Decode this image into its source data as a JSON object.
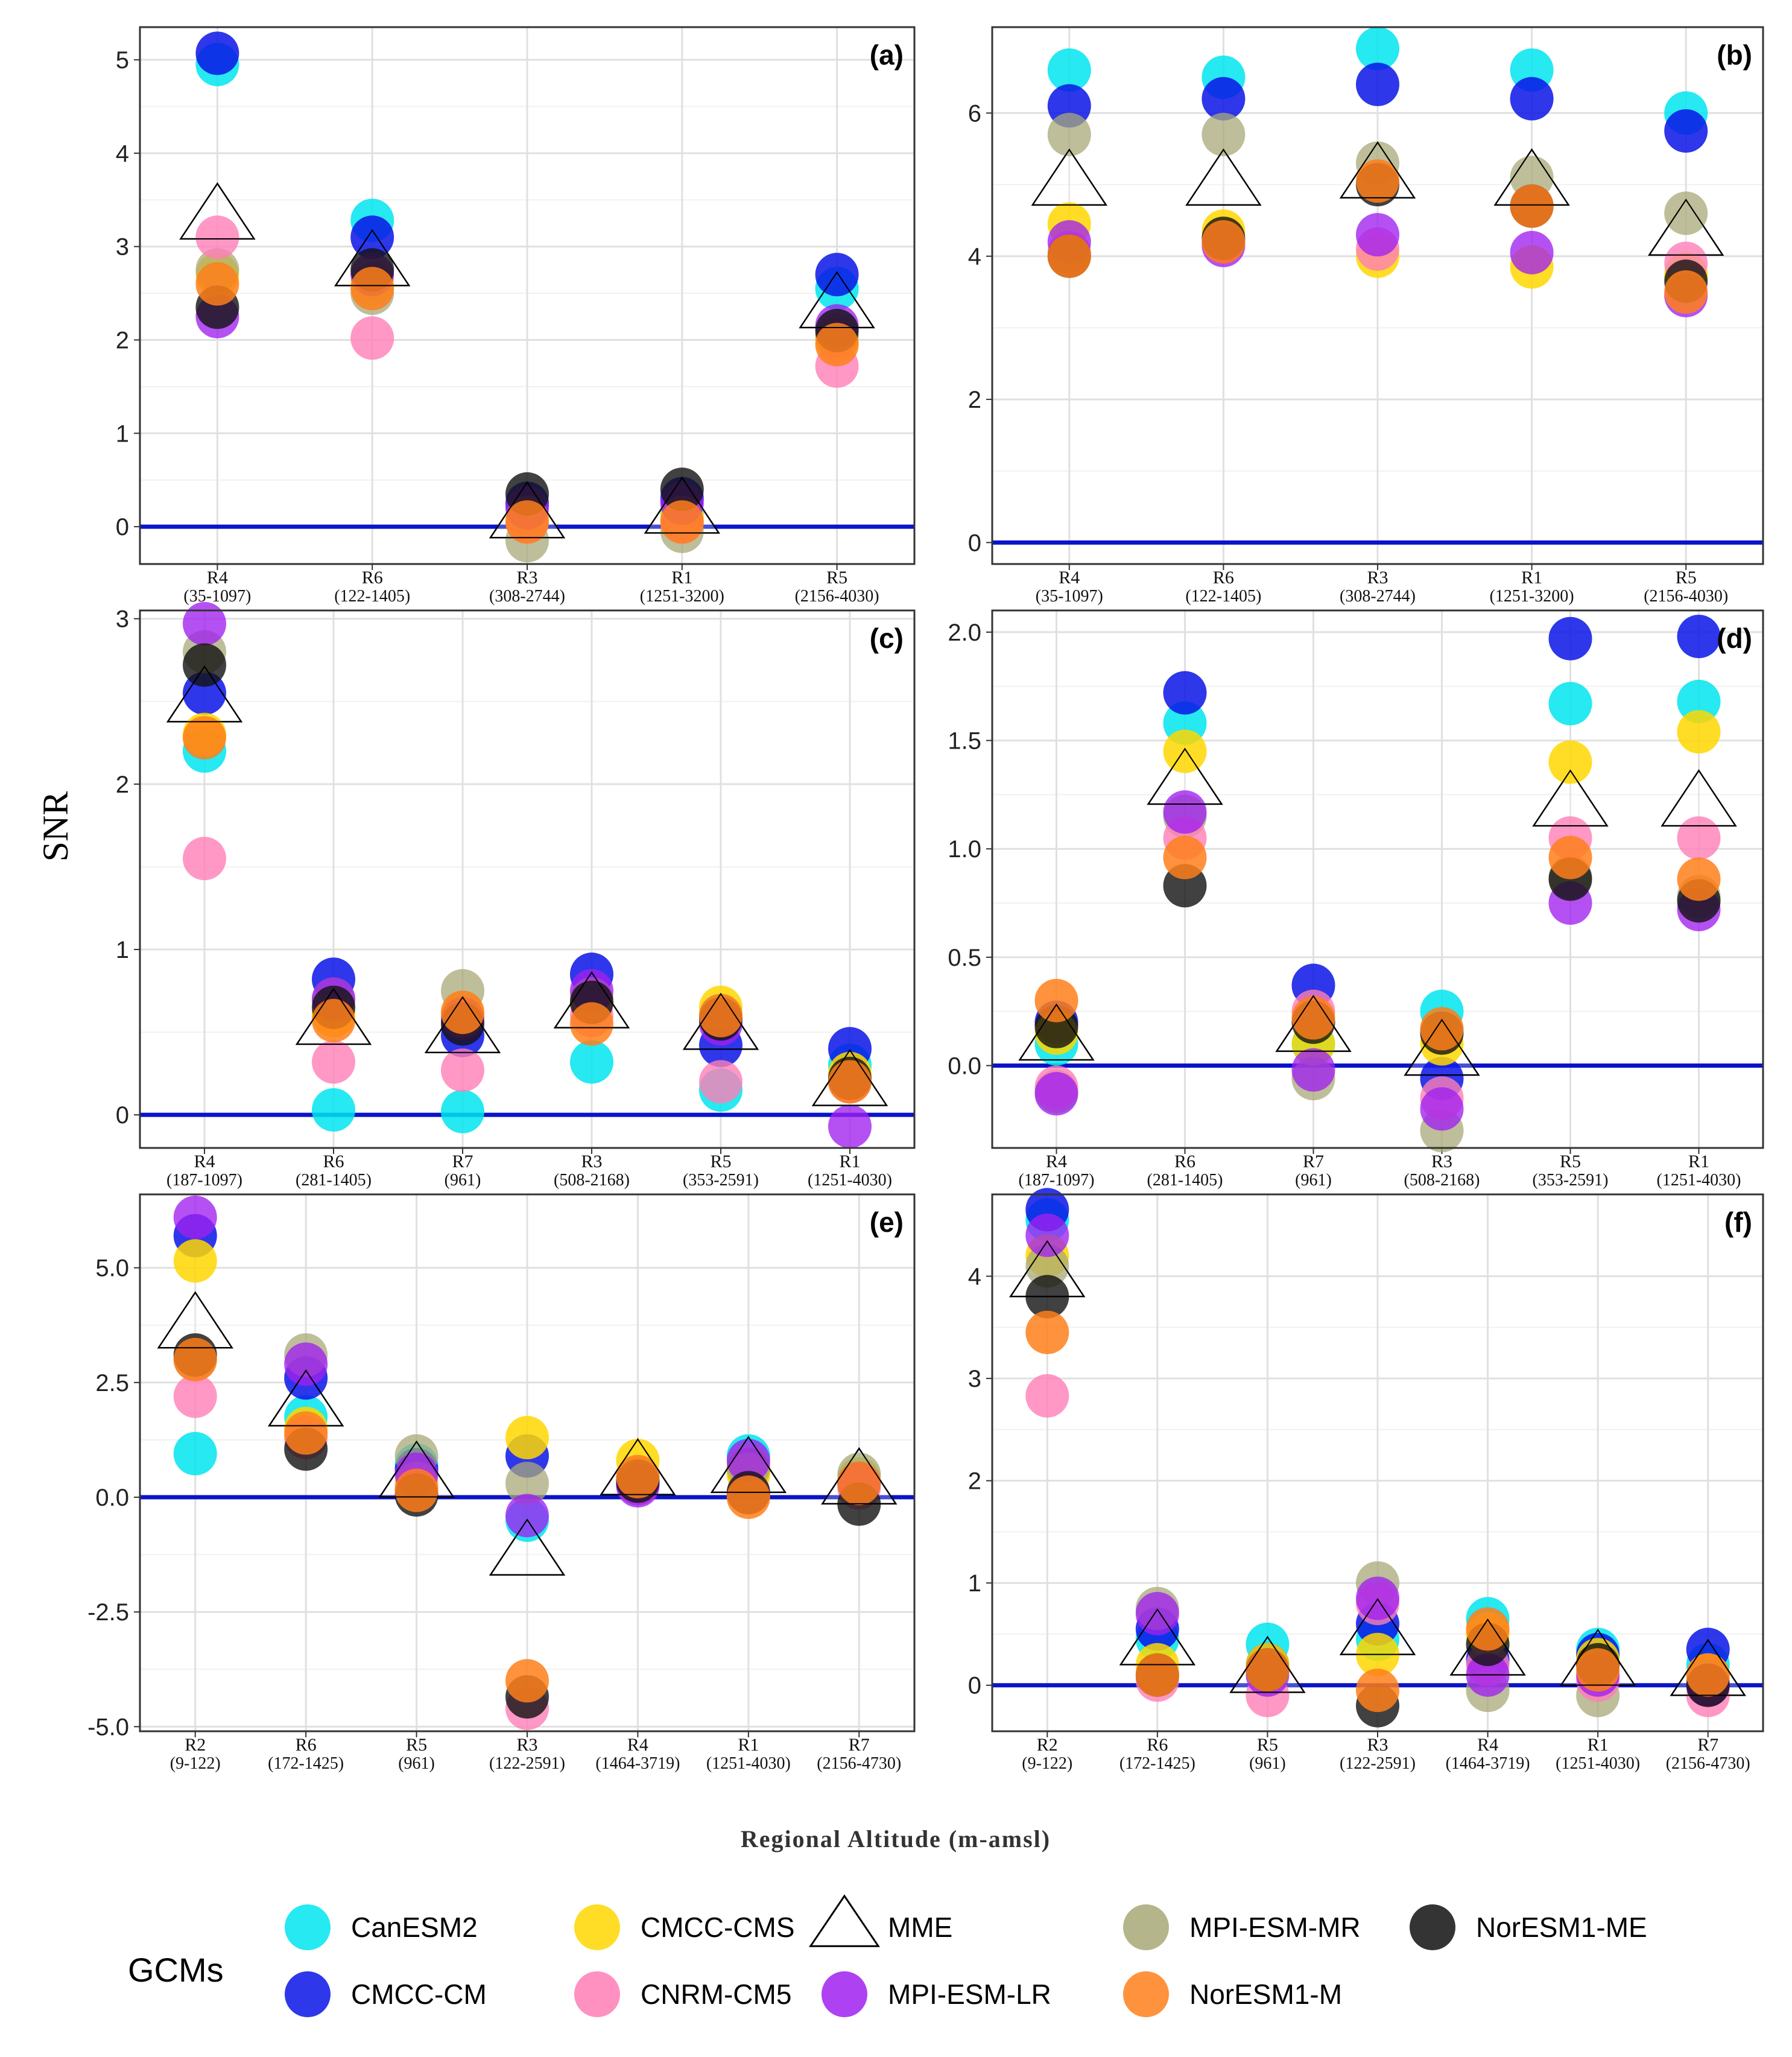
{
  "y_axis_title": "SNR",
  "x_axis_title": "Regional Altitude (m-amsl)",
  "legend": {
    "title": "GCMs",
    "items": [
      {
        "name": "CanESM2",
        "color": "#00E5EE",
        "marker": "circle"
      },
      {
        "name": "CMCC-CM",
        "color": "#0A14E6",
        "marker": "circle"
      },
      {
        "name": "CMCC-CMS",
        "color": "#FFD700",
        "marker": "circle"
      },
      {
        "name": "CNRM-CM5",
        "color": "#FF7EB6",
        "marker": "circle"
      },
      {
        "name": "MME",
        "color": "#000000",
        "marker": "triangle"
      },
      {
        "name": "MPI-ESM-LR",
        "color": "#A020F0",
        "marker": "circle"
      },
      {
        "name": "MPI-ESM-MR",
        "color": "#A8A878",
        "marker": "circle"
      },
      {
        "name": "NorESM1-M",
        "color": "#FF7F1A",
        "marker": "circle"
      },
      {
        "name": "NorESM1-ME",
        "color": "#111111",
        "marker": "circle"
      }
    ]
  },
  "chart_data": [
    {
      "type": "scatter",
      "panel": "(a)",
      "categories": [
        "R4",
        "R6",
        "R3",
        "R1",
        "R5"
      ],
      "ranges": [
        "(35-1097)",
        "(122-1405)",
        "(308-2744)",
        "(1251-3200)",
        "(2156-4030)"
      ],
      "ylim": [
        -0.4,
        5.35
      ],
      "yticks": [
        0,
        1,
        2,
        3,
        4,
        5
      ],
      "ytick_labels": [
        "0",
        "1",
        "2",
        "3",
        "4",
        "5"
      ],
      "series": [
        {
          "name": "CanESM2",
          "values": [
            4.95,
            3.28,
            0.12,
            0.15,
            2.55
          ]
        },
        {
          "name": "CMCC-CM",
          "values": [
            5.07,
            3.1,
            0.25,
            0.3,
            2.7
          ]
        },
        {
          "name": "CMCC-CMS",
          "values": [
            2.7,
            2.6,
            0.1,
            0.1,
            2.0
          ]
        },
        {
          "name": "CNRM-CM5",
          "values": [
            3.1,
            2.02,
            0.05,
            0.05,
            1.72
          ]
        },
        {
          "name": "MPI-ESM-LR",
          "values": [
            2.25,
            2.7,
            0.2,
            0.25,
            2.15
          ]
        },
        {
          "name": "MPI-ESM-MR",
          "values": [
            2.75,
            2.5,
            -0.15,
            -0.05,
            2.05
          ]
        },
        {
          "name": "NorESM1-M",
          "values": [
            2.6,
            2.55,
            0.05,
            0.05,
            1.95
          ]
        },
        {
          "name": "NorESM1-ME",
          "values": [
            2.35,
            2.75,
            0.35,
            0.4,
            2.1
          ]
        },
        {
          "name": "MME",
          "values": [
            3.3,
            2.8,
            0.1,
            0.15,
            2.35
          ]
        }
      ]
    },
    {
      "type": "scatter",
      "panel": "(b)",
      "categories": [
        "R4",
        "R6",
        "R3",
        "R1",
        "R5"
      ],
      "ranges": [
        "(35-1097)",
        "(122-1405)",
        "(308-2744)",
        "(1251-3200)",
        "(2156-4030)"
      ],
      "ylim": [
        -0.3,
        7.2
      ],
      "yticks": [
        0,
        2,
        4,
        6
      ],
      "ytick_labels": [
        "0",
        "2",
        "4",
        "6"
      ],
      "series": [
        {
          "name": "CanESM2",
          "values": [
            6.6,
            6.5,
            6.9,
            6.6,
            6.0
          ]
        },
        {
          "name": "CMCC-CM",
          "values": [
            6.1,
            6.2,
            6.4,
            6.2,
            5.75
          ]
        },
        {
          "name": "CMCC-CMS",
          "values": [
            4.45,
            4.35,
            4.0,
            3.85,
            3.75
          ]
        },
        {
          "name": "CNRM-CM5",
          "values": [
            4.05,
            4.2,
            4.1,
            4.7,
            3.9
          ]
        },
        {
          "name": "MPI-ESM-LR",
          "values": [
            4.2,
            4.15,
            4.3,
            4.05,
            3.45
          ]
        },
        {
          "name": "MPI-ESM-MR",
          "values": [
            5.7,
            5.7,
            5.3,
            5.1,
            4.6
          ]
        },
        {
          "name": "NorESM1-M",
          "values": [
            4.0,
            4.2,
            5.05,
            4.7,
            3.5
          ]
        },
        {
          "name": "NorESM1-ME",
          "values": [
            4.0,
            4.25,
            5.0,
            4.7,
            3.65
          ]
        },
        {
          "name": "MME",
          "values": [
            5.0,
            5.0,
            5.1,
            5.0,
            4.3
          ]
        }
      ]
    },
    {
      "type": "scatter",
      "panel": "(c)",
      "categories": [
        "R4",
        "R6",
        "R7",
        "R3",
        "R5",
        "R1"
      ],
      "ranges": [
        "(187-1097)",
        "(281-1405)",
        "(961)",
        "(508-2168)",
        "(353-2591)",
        "(1251-4030)"
      ],
      "ylim": [
        -0.2,
        3.05
      ],
      "yticks": [
        0,
        1,
        2,
        3
      ],
      "ytick_labels": [
        "0",
        "1",
        "2",
        "3"
      ],
      "series": [
        {
          "name": "CanESM2",
          "values": [
            2.2,
            0.03,
            0.02,
            0.32,
            0.15,
            0.3
          ]
        },
        {
          "name": "CMCC-CM",
          "values": [
            2.55,
            0.82,
            0.48,
            0.85,
            0.42,
            0.4
          ]
        },
        {
          "name": "CMCC-CMS",
          "values": [
            2.3,
            0.6,
            0.6,
            0.7,
            0.65,
            0.25
          ]
        },
        {
          "name": "CNRM-CM5",
          "values": [
            1.55,
            0.32,
            0.27,
            0.6,
            0.2,
            0.2
          ]
        },
        {
          "name": "MPI-ESM-LR",
          "values": [
            2.97,
            0.7,
            0.58,
            0.75,
            0.55,
            -0.07
          ]
        },
        {
          "name": "MPI-ESM-MR",
          "values": [
            2.8,
            0.7,
            0.75,
            0.7,
            0.6,
            0.2
          ]
        },
        {
          "name": "NorESM1-M",
          "values": [
            2.28,
            0.57,
            0.62,
            0.55,
            0.6,
            0.2
          ]
        },
        {
          "name": "NorESM1-ME",
          "values": [
            2.72,
            0.65,
            0.55,
            0.68,
            0.58,
            0.22
          ]
        },
        {
          "name": "MME",
          "values": [
            2.5,
            0.55,
            0.5,
            0.65,
            0.52,
            0.18
          ]
        }
      ]
    },
    {
      "type": "scatter",
      "panel": "(d)",
      "categories": [
        "R4",
        "R6",
        "R7",
        "R3",
        "R5",
        "R1"
      ],
      "ranges": [
        "(187-1097)",
        "(281-1405)",
        "(961)",
        "(508-2168)",
        "(353-2591)",
        "(1251-4030)"
      ],
      "ylim": [
        -0.38,
        2.1
      ],
      "yticks": [
        0,
        0.5,
        1,
        1.5,
        2
      ],
      "ytick_labels": [
        "0.0",
        "0.5",
        "1.0",
        "1.5",
        "2.0"
      ],
      "series": [
        {
          "name": "CanESM2",
          "values": [
            0.1,
            1.58,
            0.1,
            0.25,
            1.67,
            1.68
          ]
        },
        {
          "name": "CMCC-CM",
          "values": [
            0.2,
            1.72,
            0.37,
            -0.06,
            1.97,
            1.98
          ]
        },
        {
          "name": "CMCC-CMS",
          "values": [
            0.15,
            1.45,
            0.1,
            0.1,
            1.4,
            1.54
          ]
        },
        {
          "name": "CNRM-CM5",
          "values": [
            -0.1,
            1.05,
            0.25,
            -0.15,
            1.05,
            1.05
          ]
        },
        {
          "name": "MPI-ESM-LR",
          "values": [
            -0.13,
            1.17,
            -0.02,
            -0.2,
            0.75,
            0.72
          ]
        },
        {
          "name": "MPI-ESM-MR",
          "values": [
            -0.12,
            1.15,
            -0.06,
            -0.3,
            0.87,
            0.78
          ]
        },
        {
          "name": "NorESM1-M",
          "values": [
            0.3,
            0.96,
            0.22,
            0.17,
            0.96,
            0.86
          ]
        },
        {
          "name": "NorESM1-ME",
          "values": [
            0.18,
            0.83,
            0.2,
            0.15,
            0.86,
            0.76
          ]
        },
        {
          "name": "MME",
          "values": [
            0.12,
            1.3,
            0.16,
            0.05,
            1.2,
            1.2
          ]
        }
      ]
    },
    {
      "type": "scatter",
      "panel": "(e)",
      "categories": [
        "R2",
        "R6",
        "R5",
        "R3",
        "R4",
        "R1",
        "R7"
      ],
      "ranges": [
        "(9-122)",
        "(172-1425)",
        "(961)",
        "(122-2591)",
        "(1464-3719)",
        "(1251-4030)",
        "(2156-4730)"
      ],
      "ylim": [
        -5.1,
        6.6
      ],
      "yticks": [
        -5,
        -2.5,
        0,
        2.5,
        5
      ],
      "ytick_labels": [
        "-5.0",
        "-2.5",
        "0.0",
        "2.5",
        "5.0"
      ],
      "series": [
        {
          "name": "CanESM2",
          "values": [
            0.95,
            1.75,
            0.7,
            -0.5,
            0.3,
            0.9,
            0.4
          ]
        },
        {
          "name": "CMCC-CM",
          "values": [
            5.7,
            2.6,
            0.6,
            0.9,
            0.3,
            0.6,
            0.3
          ]
        },
        {
          "name": "CMCC-CMS",
          "values": [
            5.15,
            1.5,
            0.3,
            1.3,
            0.8,
            0.5,
            0.4
          ]
        },
        {
          "name": "CNRM-CM5",
          "values": [
            2.2,
            1.3,
            0.2,
            -4.6,
            0.3,
            0.1,
            0.2
          ]
        },
        {
          "name": "MPI-ESM-LR",
          "values": [
            6.1,
            2.9,
            0.5,
            -0.4,
            0.25,
            0.8,
            0.3
          ]
        },
        {
          "name": "MPI-ESM-MR",
          "values": [
            3.0,
            3.1,
            0.9,
            0.3,
            0.4,
            0.7,
            0.5
          ]
        },
        {
          "name": "NorESM1-M",
          "values": [
            3.0,
            1.4,
            0.15,
            -4.0,
            0.45,
            0.0,
            0.3
          ]
        },
        {
          "name": "NorESM1-ME",
          "values": [
            3.1,
            1.05,
            0.05,
            -4.35,
            0.35,
            0.1,
            -0.15
          ]
        },
        {
          "name": "MME",
          "values": [
            3.7,
            2.0,
            0.45,
            -1.25,
            0.5,
            0.55,
            0.3
          ]
        }
      ]
    },
    {
      "type": "scatter",
      "panel": "(f)",
      "categories": [
        "R2",
        "R6",
        "R5",
        "R3",
        "R4",
        "R1",
        "R7"
      ],
      "ranges": [
        "(9-122)",
        "(172-1425)",
        "(961)",
        "(122-2591)",
        "(1464-3719)",
        "(1251-4030)",
        "(2156-4730)"
      ],
      "ylim": [
        -0.45,
        4.8
      ],
      "yticks": [
        0,
        1,
        2,
        3,
        4
      ],
      "ytick_labels": [
        "0",
        "1",
        "2",
        "3",
        "4"
      ],
      "series": [
        {
          "name": "CanESM2",
          "values": [
            4.55,
            0.45,
            0.4,
            0.45,
            0.65,
            0.35,
            0.2
          ]
        },
        {
          "name": "CMCC-CM",
          "values": [
            4.65,
            0.55,
            0.2,
            0.6,
            0.25,
            0.3,
            0.35
          ]
        },
        {
          "name": "CMCC-CMS",
          "values": [
            4.2,
            0.2,
            0.2,
            0.3,
            0.5,
            0.25,
            0.1
          ]
        },
        {
          "name": "CNRM-CM5",
          "values": [
            2.83,
            0.05,
            -0.1,
            0.8,
            0.2,
            0.05,
            -0.1
          ]
        },
        {
          "name": "MPI-ESM-LR",
          "values": [
            4.4,
            0.7,
            0.1,
            0.85,
            0.1,
            0.1,
            0.0
          ]
        },
        {
          "name": "MPI-ESM-MR",
          "values": [
            4.1,
            0.75,
            0.15,
            1.0,
            -0.05,
            -0.1,
            0.05
          ]
        },
        {
          "name": "NorESM1-M",
          "values": [
            3.45,
            0.1,
            0.15,
            -0.05,
            0.55,
            0.15,
            0.1
          ]
        },
        {
          "name": "NorESM1-ME",
          "values": [
            3.8,
            0.1,
            0.15,
            -0.2,
            0.4,
            0.2,
            0.0
          ]
        },
        {
          "name": "MME",
          "values": [
            4.0,
            0.4,
            0.13,
            0.5,
            0.3,
            0.2,
            0.1
          ]
        }
      ]
    }
  ]
}
